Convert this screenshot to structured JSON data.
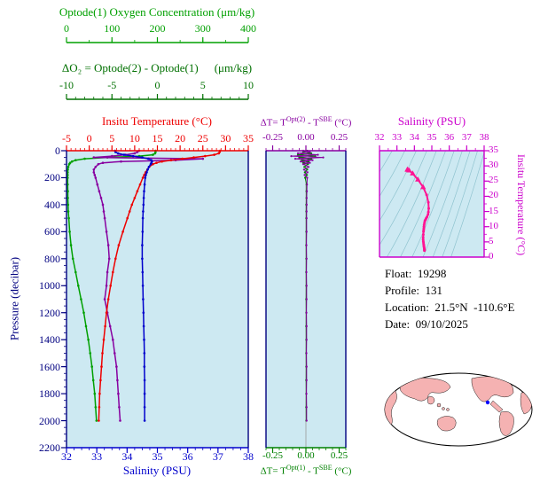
{
  "colors": {
    "oxygen": "#00a000",
    "delta_o2_axis": "#007000",
    "delta_o2_curve": "#8800a0",
    "temperature": "#ee0000",
    "salinity": "#0000cc",
    "pressure_axis": "#000080",
    "delta_t2": "#8800a0",
    "delta_t1": "#008000",
    "ts_axis": "#cc00cc",
    "ts_curve": "#ff1493",
    "plot_bg": "#cde9f2",
    "contour": "#8fc3cf",
    "zero_line": "#999999",
    "map_land": "#f5b2b2",
    "map_outline": "#000000",
    "marker": "#0000ff"
  },
  "info": {
    "float_label": "Float:",
    "float_value": "19298",
    "profile_label": "Profile:",
    "profile_value": "131",
    "location_label": "Location:",
    "location_value": "21.5°N  -110.6°E",
    "date_label": "Date:",
    "date_value": "09/10/2025"
  },
  "chart_data": [
    {
      "type": "line",
      "title": "Vertical profiles vs pressure",
      "y_axis": {
        "label": "Pressure (decibar)",
        "ticks": [
          0,
          200,
          400,
          600,
          800,
          1000,
          1200,
          1400,
          1600,
          1800,
          2000,
          2200
        ],
        "range": [
          0,
          2200
        ]
      },
      "x_axes": {
        "oxygen": {
          "label": "Optode(1) Oxygen Concentration (μm/kg)",
          "ticks": [
            0,
            100,
            200,
            300,
            400
          ],
          "range": [
            0,
            400
          ]
        },
        "delta_o2": {
          "label": "ΔO₂ = Optode(2) - Optode(1)",
          "unit_label": "(μm/kg)",
          "ticks": [
            -10,
            -5,
            0,
            5,
            10
          ],
          "range": [
            -10,
            10
          ]
        },
        "temperature": {
          "label": "Insitu Temperature (°C)",
          "ticks": [
            -5,
            0,
            5,
            10,
            15,
            20,
            25,
            30,
            35
          ],
          "range": [
            -5,
            35
          ]
        },
        "salinity": {
          "label": "Salinity (PSU)",
          "ticks": [
            32,
            33,
            34,
            35,
            36,
            37,
            38
          ],
          "range": [
            32,
            38
          ]
        }
      },
      "pressure": [
        0,
        10,
        20,
        30,
        40,
        50,
        60,
        70,
        80,
        90,
        100,
        120,
        140,
        160,
        180,
        200,
        250,
        300,
        350,
        400,
        450,
        500,
        600,
        700,
        800,
        900,
        1000,
        1100,
        1200,
        1300,
        1400,
        1500,
        1600,
        1700,
        1800,
        1900,
        2000
      ],
      "series": [
        {
          "name": "oxygen",
          "axis": "oxygen",
          "color": "#00a000",
          "values": [
            196,
            196,
            195,
            190,
            160,
            90,
            40,
            20,
            12,
            8,
            6,
            4,
            3,
            2.5,
            2.5,
            2.5,
            2.5,
            3,
            3,
            3.5,
            4,
            5,
            7,
            10,
            14,
            20,
            26,
            32,
            38,
            43,
            48,
            52,
            56,
            59,
            62,
            64,
            66
          ]
        },
        {
          "name": "delta_o2",
          "axis": "delta_o2",
          "color": "#8800a0",
          "values": [
            -2,
            -2.2,
            -2.5,
            -3.5,
            -5,
            -7,
            5,
            2,
            -4,
            -6,
            -6.5,
            -6.8,
            -7,
            -7,
            -6.9,
            -6.8,
            -6.6,
            -6.4,
            -6.2,
            -6,
            -5.9,
            -5.8,
            -5.6,
            -5.4,
            -5.3,
            -5.5,
            -5.6,
            -5.8,
            -5.5,
            -5.2,
            -4.9,
            -4.7,
            -4.5,
            -4.4,
            -4.3,
            -4.2,
            -4.1
          ]
        },
        {
          "name": "temperature",
          "axis": "temperature",
          "color": "#ee0000",
          "values": [
            28.8,
            28.7,
            28.5,
            27.5,
            25.5,
            23.0,
            20.5,
            18.0,
            16.0,
            14.8,
            14.0,
            13.2,
            12.8,
            12.4,
            12.1,
            11.8,
            11.2,
            10.6,
            10.0,
            9.4,
            8.9,
            8.4,
            7.4,
            6.5,
            5.8,
            5.2,
            4.7,
            4.2,
            3.8,
            3.5,
            3.2,
            2.9,
            2.7,
            2.5,
            2.3,
            2.2,
            2.1
          ]
        },
        {
          "name": "salinity",
          "axis": "salinity",
          "color": "#0000cc",
          "values": [
            33.6,
            33.62,
            33.7,
            33.9,
            34.2,
            34.5,
            34.7,
            34.8,
            34.82,
            34.8,
            34.78,
            34.72,
            34.68,
            34.65,
            34.62,
            34.6,
            34.58,
            34.56,
            34.55,
            34.54,
            34.53,
            34.52,
            34.51,
            34.5,
            34.5,
            34.51,
            34.52,
            34.53,
            34.54,
            34.55,
            34.56,
            34.57,
            34.57,
            34.58,
            34.58,
            34.58,
            34.58
          ]
        }
      ]
    },
    {
      "type": "line",
      "title": "Optode minus SBE temperature difference",
      "x_axis_top": {
        "label_parts": {
          "p1": "ΔT= T",
          "s1": "Opt(2)",
          "p2": " - T",
          "s2": "SBE",
          "p3": " (°C)"
        },
        "ticks": [
          "-0.25",
          "0.00",
          "0.25"
        ],
        "range": [
          -0.3,
          0.3
        ]
      },
      "x_axis_bottom": {
        "label_parts": {
          "p1": "ΔT= T",
          "s1": "Opt(1)",
          "p2": " - T",
          "s2": "SBE",
          "p3": " (°C)"
        },
        "ticks": [
          "-0.25",
          "0.00",
          "0.25"
        ],
        "range": [
          -0.3,
          0.3
        ]
      },
      "pressure": [
        0,
        10,
        20,
        30,
        40,
        50,
        60,
        70,
        80,
        90,
        100,
        120,
        140,
        160,
        180,
        200,
        250,
        300,
        350,
        400,
        450,
        500,
        600,
        700,
        800,
        900,
        1000,
        1100,
        1200,
        1300,
        1400,
        1500,
        1600,
        1700,
        1800,
        1900,
        2000
      ],
      "series": [
        {
          "name": "delta_t_opt1",
          "color": "#008000",
          "values": [
            0.01,
            -0.02,
            0.04,
            -0.06,
            0.07,
            -0.05,
            0.04,
            -0.03,
            0.02,
            -0.02,
            0.015,
            -0.012,
            0.01,
            -0.008,
            0.008,
            -0.006,
            0.005,
            0.004,
            0.004,
            0.003,
            0.003,
            0.003,
            0.003,
            0.002,
            0.003,
            0.002,
            0.003,
            0.002,
            0.003,
            0.002,
            0.003,
            0.002,
            0.003,
            0.002,
            0.003,
            0.002,
            0.003
          ]
        },
        {
          "name": "delta_t_opt2",
          "color": "#8800a0",
          "values": [
            -0.02,
            0.03,
            -0.06,
            0.09,
            -0.11,
            0.13,
            -0.08,
            0.05,
            -0.04,
            0.03,
            -0.02,
            0.02,
            -0.015,
            0.012,
            -0.01,
            0.01,
            0.008,
            0.007,
            0.006,
            0.006,
            0.005,
            0.005,
            0.005,
            0.004,
            0.005,
            0.004,
            0.005,
            0.005,
            0.004,
            0.005,
            0.005,
            0.004,
            0.005,
            0.005,
            0.004,
            0.005,
            0.005
          ]
        }
      ]
    },
    {
      "type": "line",
      "title": "T-S diagram",
      "x_axis": {
        "label": "Salinity (PSU)",
        "ticks": [
          32,
          33,
          34,
          35,
          36,
          37,
          38
        ],
        "range": [
          32,
          38
        ]
      },
      "y_axis": {
        "label": "Insitu Temperature (°C)",
        "ticks": [
          0,
          5,
          10,
          15,
          20,
          25,
          30,
          35
        ],
        "range": [
          0,
          35
        ]
      },
      "series": [
        {
          "name": "ts_curve",
          "color": "#ff1493",
          "salinity": [
            33.6,
            33.62,
            33.7,
            33.9,
            34.2,
            34.5,
            34.7,
            34.8,
            34.82,
            34.8,
            34.78,
            34.72,
            34.68,
            34.65,
            34.62,
            34.6,
            34.58,
            34.56,
            34.55,
            34.54,
            34.53,
            34.52,
            34.51,
            34.5,
            34.5,
            34.51,
            34.52,
            34.53,
            34.54,
            34.55,
            34.56,
            34.57,
            34.57,
            34.58,
            34.58,
            34.58,
            34.58
          ],
          "temperature": [
            28.8,
            28.7,
            28.5,
            27.5,
            25.5,
            23.0,
            20.5,
            18.0,
            16.0,
            14.8,
            14.0,
            13.2,
            12.8,
            12.4,
            12.1,
            11.8,
            11.2,
            10.6,
            10.0,
            9.4,
            8.9,
            8.4,
            7.4,
            6.5,
            5.8,
            5.2,
            4.7,
            4.2,
            3.8,
            3.5,
            3.2,
            2.9,
            2.7,
            2.5,
            2.3,
            2.2,
            2.1
          ]
        }
      ]
    }
  ]
}
